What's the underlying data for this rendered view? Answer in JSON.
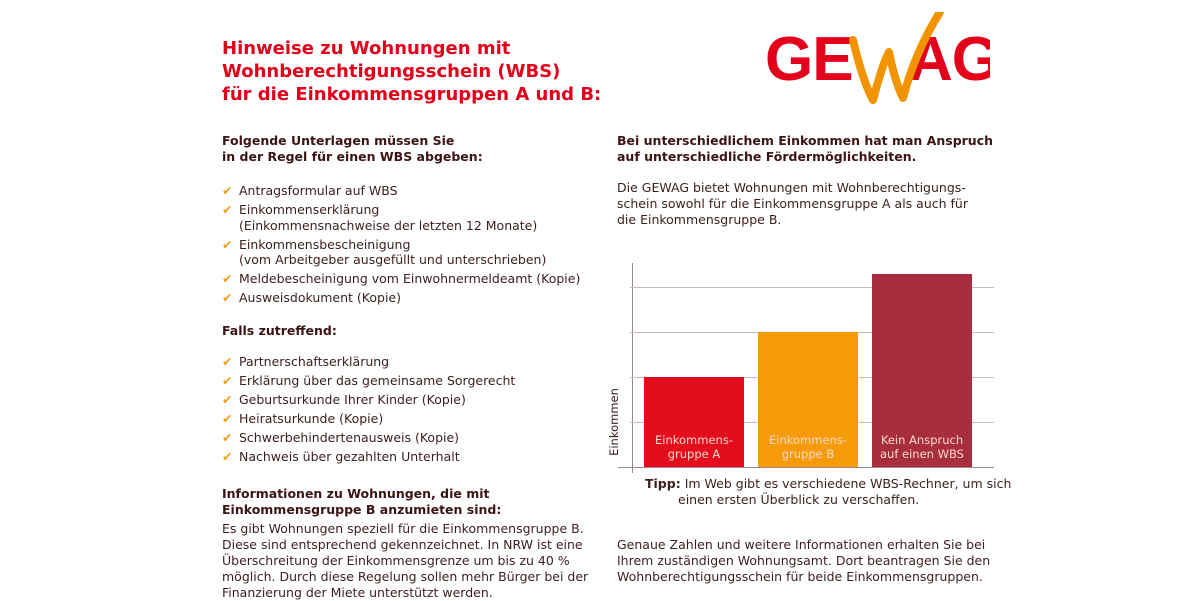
{
  "title": [
    "Hinweise zu Wohnungen mit",
    "Wohnberechtigungsschein (WBS)",
    "für die Einkommensgruppen A und B:"
  ],
  "logo": {
    "text": "GEWAG",
    "color_red": "#e2001a",
    "color_orange": "#f29400"
  },
  "left": {
    "heading1": [
      "Folgende Unterlagen müssen Sie",
      "in der Regel für einen WBS abgeben:"
    ],
    "list1": [
      [
        "Antragsformular auf WBS"
      ],
      [
        "Einkommenserklärung",
        "(Einkommensnachweise der letzten 12 Monate)"
      ],
      [
        "Einkommensbescheinigung",
        "(vom Arbeitgeber ausgefüllt und unterschrieben)"
      ],
      [
        "Meldebescheinigung vom Einwohnermeldeamt (Kopie)"
      ],
      [
        "Ausweisdokument (Kopie)"
      ]
    ],
    "heading2": "Falls zutreffend:",
    "list2": [
      "Partnerschaftserklärung",
      "Erklärung über das gemeinsame Sorgerecht",
      "Geburtsurkunde Ihrer Kinder (Kopie)",
      "Heiratsurkunde (Kopie)",
      "Schwerbehindertenausweis (Kopie)",
      "Nachweis über gezahlten Unterhalt"
    ],
    "heading3": [
      "Informationen zu Wohnungen, die mit",
      "Einkommensgruppe B anzumieten sind:"
    ],
    "para": [
      "Es gibt Wohnungen speziell für die Einkommensgruppe B.",
      "Diese sind entsprechend gekennzeichnet. In NRW ist eine",
      "Überschreitung der Einkommensgrenze um bis zu 40 %",
      "möglich. Durch diese Regelung sollen mehr Bürger bei der",
      "Finanzierung der Miete unterstützt werden."
    ]
  },
  "right": {
    "heading": [
      "Bei unterschiedlichem Einkommen hat man Anspruch",
      "auf unterschiedliche Fördermöglichkeiten."
    ],
    "para1": [
      "Die GEWAG bietet Wohnungen mit Wohnberechtigungs-",
      "schein sowohl für die Einkommensgruppe A als auch für",
      "die Einkommensgruppe B."
    ],
    "tip_label": "Tipp:",
    "tip": [
      "Im Web gibt es verschiedene WBS-Rechner, um sich",
      "einen ersten Überblick zu verschaffen."
    ],
    "para2": [
      "Genaue Zahlen und weitere Informationen erhalten Sie bei",
      "Ihrem zuständigen Wohnungsamt. Dort beantragen Sie den",
      "Wohnberechtigungsschein für beide Einkommensgruppen."
    ]
  },
  "icons": {
    "bullet": "check-icon"
  },
  "chart_data": {
    "type": "bar",
    "ylabel": "Einkommen",
    "categories": [
      [
        "Einkommens-",
        "gruppe A"
      ],
      [
        "Einkommens-",
        "gruppe B"
      ],
      [
        "Kein Anspruch",
        "auf einen WBS"
      ]
    ],
    "values": [
      2,
      3,
      4.3
    ],
    "colors": [
      "#e30d1d",
      "#f59b0a",
      "#a82d3e"
    ],
    "ylim": [
      0,
      4.5
    ],
    "grid": true
  }
}
